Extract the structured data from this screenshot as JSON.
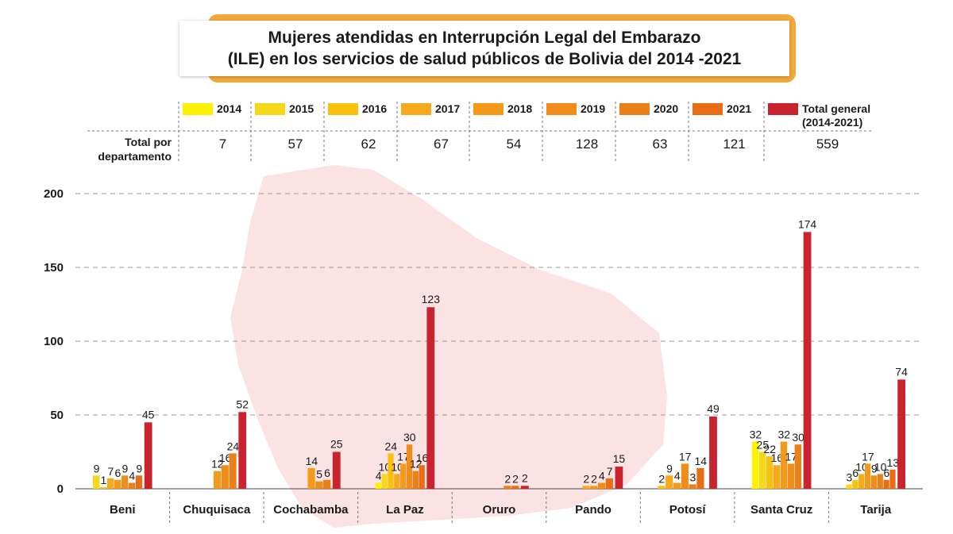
{
  "title": {
    "line1": "Mujeres atendidas en Interrupción Legal del Embarazo",
    "line2": "(ILE) en los servicios de salud públicos de Bolivia del 2014 -2021"
  },
  "totals_row": {
    "label_line1": "Total por",
    "label_line2": "departamento",
    "values": [
      "7",
      "57",
      "62",
      "67",
      "54",
      "128",
      "63",
      "121",
      "559"
    ]
  },
  "legend": {
    "total_line1": "Total general",
    "total_line2": "(2014-2021)"
  },
  "colors": {
    "series": [
      "#fff200",
      "#f6d81a",
      "#f9c00c",
      "#f7a91d",
      "#f39a1b",
      "#ef8c1a",
      "#eb7f18",
      "#e86e16",
      "#c8232f"
    ],
    "map": "#fbe3e3",
    "title_accent": "#f2a93b"
  },
  "chart_data": {
    "type": "bar",
    "categories": [
      "Beni",
      "Chuquisaca",
      "Cochabamba",
      "La Paz",
      "Oruro",
      "Pando",
      "Potosí",
      "Santa Cruz",
      "Tarija"
    ],
    "yticks": [
      "0",
      "50",
      "100",
      "150",
      "200"
    ],
    "ylim": [
      0,
      200
    ],
    "grid": true,
    "legend_position": "top",
    "series": [
      {
        "name": "2014",
        "values": [
          null,
          null,
          null,
          4,
          null,
          null,
          null,
          32,
          null
        ]
      },
      {
        "name": "2015",
        "values": [
          9,
          null,
          null,
          10,
          null,
          null,
          null,
          25,
          3
        ]
      },
      {
        "name": "2016",
        "values": [
          1,
          null,
          null,
          24,
          null,
          null,
          2,
          22,
          6
        ]
      },
      {
        "name": "2017",
        "values": [
          7,
          null,
          null,
          10,
          null,
          2,
          9,
          16,
          10
        ]
      },
      {
        "name": "2018",
        "values": [
          6,
          12,
          14,
          17,
          null,
          2,
          4,
          32,
          17
        ]
      },
      {
        "name": "2019",
        "values": [
          9,
          16,
          5,
          30,
          null,
          4,
          17,
          17,
          9
        ]
      },
      {
        "name": "2020",
        "values": [
          4,
          24,
          6,
          12,
          2,
          null,
          3,
          30,
          10
        ]
      },
      {
        "name": "2021",
        "values": [
          9,
          null,
          null,
          16,
          2,
          7,
          14,
          null,
          6
        ]
      },
      {
        "name": "Total general",
        "values": [
          45,
          52,
          25,
          123,
          2,
          15,
          49,
          174,
          74
        ]
      }
    ],
    "extra_bars": [
      {
        "category": "Tarija",
        "value": 13,
        "color": "#e86e16"
      }
    ]
  }
}
